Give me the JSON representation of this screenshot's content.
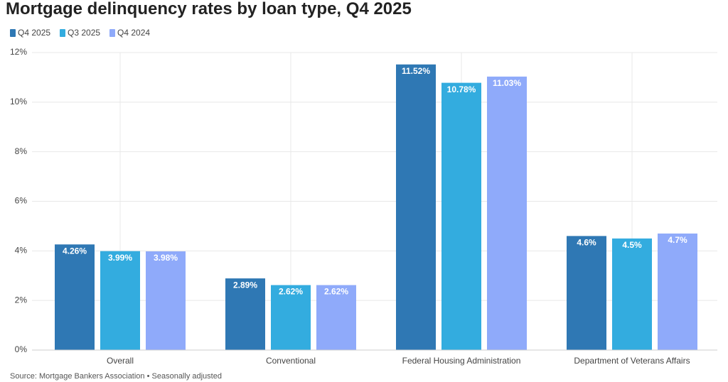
{
  "chart_data": {
    "type": "bar",
    "title": "Mortgage delinquency rates by loan type, Q4 2025",
    "source": "Source: Mortgage Bankers Association • Seasonally adjusted",
    "categories": [
      "Overall",
      "Conventional",
      "Federal Housing Administration",
      "Department of Veterans Affairs"
    ],
    "series": [
      {
        "name": "Q4 2025",
        "color": "#2f78b4",
        "values": [
          4.26,
          2.89,
          11.52,
          4.6
        ],
        "value_labels": [
          "4.26%",
          "2.89%",
          "11.52%",
          "4.6%"
        ]
      },
      {
        "name": "Q3 2025",
        "color": "#33acdf",
        "values": [
          3.99,
          2.62,
          10.78,
          4.5
        ],
        "value_labels": [
          "3.99%",
          "2.62%",
          "10.78%",
          "4.5%"
        ]
      },
      {
        "name": "Q4 2024",
        "color": "#8faafa",
        "values": [
          3.98,
          2.62,
          11.03,
          4.7
        ],
        "value_labels": [
          "3.98%",
          "2.62%",
          "11.03%",
          "4.7%"
        ]
      }
    ],
    "ylim": [
      0,
      12
    ],
    "yticks": [
      {
        "value": 0,
        "label": "0%"
      },
      {
        "value": 2,
        "label": "2%"
      },
      {
        "value": 4,
        "label": "4%"
      },
      {
        "value": 6,
        "label": "6%"
      },
      {
        "value": 8,
        "label": "8%"
      },
      {
        "value": 10,
        "label": "10%"
      },
      {
        "value": 12,
        "label": "12%"
      }
    ],
    "grid": true
  }
}
